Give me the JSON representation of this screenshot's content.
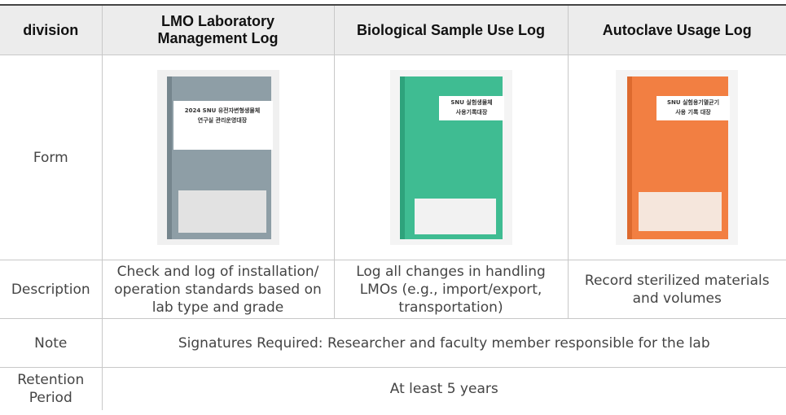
{
  "table": {
    "header": [
      "division",
      "LMO Laboratory Management Log",
      "Biological Sample Use Log",
      "Autoclave Usage Log"
    ],
    "rows": {
      "form": {
        "label": "Form",
        "covers": [
          {
            "lines": [
              "2024 SNU 유전자변형생물체",
              "연구실 관리운영대장"
            ]
          },
          {
            "lines": [
              "SNU 실험생물체",
              "사용기록대장"
            ]
          },
          {
            "lines": [
              "SNU 실험용기멸균기",
              "사용 기록 대장"
            ]
          }
        ]
      },
      "description": {
        "label": "Description",
        "cells": [
          "Check and log of installation/ operation standards based on lab type and grade",
          "Log all changes in handling LMOs (e.g., import/export, transportation)",
          "Record sterilized materials and volumes"
        ]
      },
      "note": {
        "label": "Note",
        "text": "Signatures Required: Researcher and faculty member responsible for the lab"
      },
      "retention": {
        "label": "Retention Period",
        "text": "At least 5 years"
      }
    }
  }
}
